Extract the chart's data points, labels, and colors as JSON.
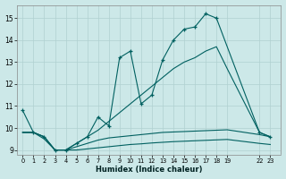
{
  "xlabel": "Humidex (Indice chaleur)",
  "bg_color": "#cce8e8",
  "grid_color": "#b0d0d0",
  "line_color": "#006060",
  "xlim": [
    -0.5,
    24.0
  ],
  "ylim": [
    8.8,
    15.6
  ],
  "yticks": [
    9,
    10,
    11,
    12,
    13,
    14,
    15
  ],
  "xtick_positions": [
    0,
    1,
    2,
    3,
    4,
    5,
    6,
    7,
    8,
    9,
    10,
    11,
    12,
    13,
    14,
    15,
    16,
    17,
    18,
    19,
    22,
    23
  ],
  "xtick_labels": [
    "0",
    "1",
    "2",
    "3",
    "4",
    "5",
    "6",
    "7",
    "8",
    "9",
    "10",
    "11",
    "12",
    "13",
    "14",
    "15",
    "16",
    "17",
    "18",
    "19",
    "22",
    "23"
  ],
  "s1x": [
    0,
    1,
    2,
    3,
    4,
    5,
    6,
    7,
    8,
    9,
    10,
    11,
    12,
    13,
    14,
    15,
    16,
    17,
    18,
    22,
    23
  ],
  "s1y": [
    10.8,
    9.8,
    9.6,
    9.0,
    9.0,
    9.3,
    9.6,
    10.5,
    10.1,
    13.2,
    13.5,
    11.1,
    11.5,
    13.1,
    14.0,
    14.5,
    14.6,
    15.2,
    15.0,
    9.8,
    9.6
  ],
  "s2x": [
    0,
    1,
    2,
    3,
    4,
    5,
    6,
    7,
    8,
    9,
    10,
    11,
    12,
    13,
    14,
    15,
    16,
    17,
    18,
    19,
    22,
    23
  ],
  "s2y": [
    9.8,
    9.8,
    9.6,
    9.0,
    9.0,
    9.3,
    9.6,
    9.9,
    10.3,
    10.7,
    11.1,
    11.5,
    11.9,
    12.3,
    12.7,
    13.0,
    13.2,
    13.5,
    13.7,
    12.7,
    9.8,
    9.6
  ],
  "s3x": [
    0,
    1,
    2,
    3,
    4,
    5,
    6,
    7,
    8,
    9,
    10,
    11,
    12,
    13,
    14,
    15,
    16,
    17,
    18,
    19,
    22,
    23
  ],
  "s3y": [
    9.8,
    9.8,
    9.6,
    9.0,
    9.0,
    9.15,
    9.3,
    9.45,
    9.55,
    9.6,
    9.65,
    9.7,
    9.75,
    9.8,
    9.82,
    9.84,
    9.86,
    9.88,
    9.9,
    9.92,
    9.7,
    9.6
  ],
  "s4x": [
    0,
    1,
    2,
    3,
    4,
    5,
    6,
    7,
    8,
    9,
    10,
    11,
    12,
    13,
    14,
    15,
    16,
    17,
    18,
    19,
    22,
    23
  ],
  "s4y": [
    9.8,
    9.8,
    9.5,
    9.0,
    9.0,
    9.0,
    9.05,
    9.1,
    9.15,
    9.2,
    9.25,
    9.28,
    9.32,
    9.35,
    9.38,
    9.4,
    9.42,
    9.44,
    9.46,
    9.48,
    9.3,
    9.25
  ]
}
